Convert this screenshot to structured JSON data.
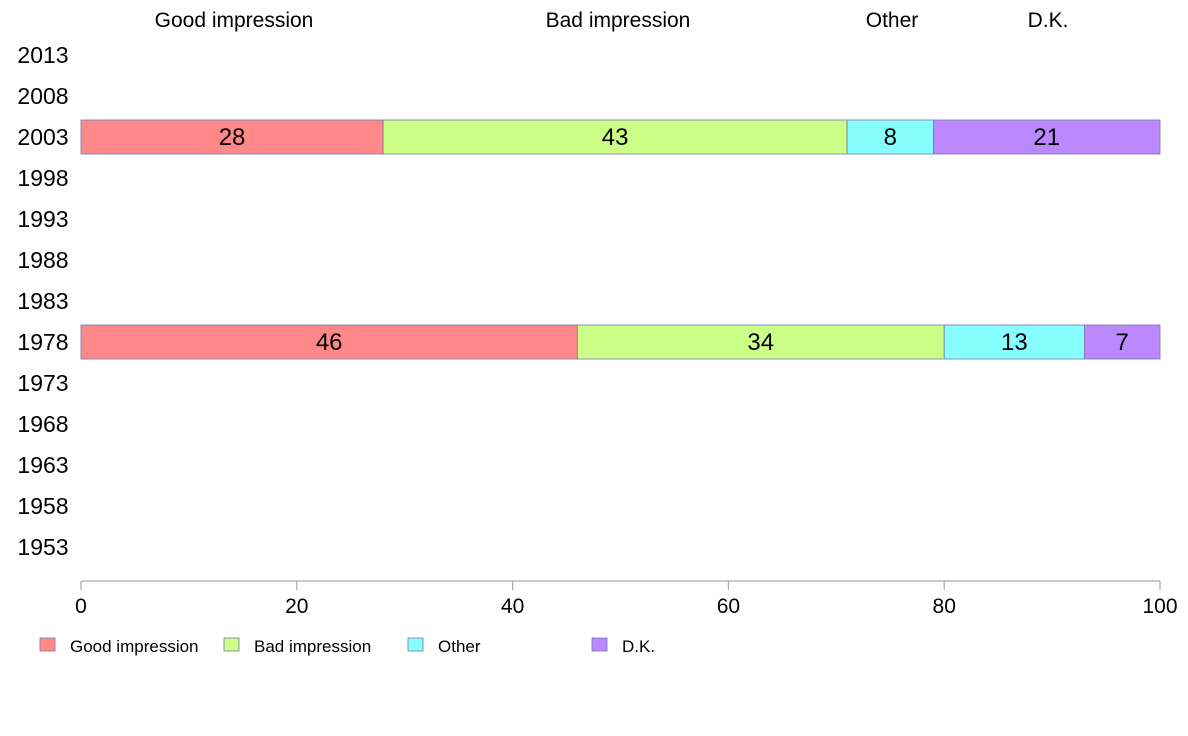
{
  "chart_data": {
    "type": "bar",
    "orientation": "horizontal",
    "stacked": true,
    "title": "",
    "xlabel": "",
    "ylabel": "",
    "xlim": [
      0,
      100
    ],
    "x_ticks": [
      "0",
      "20",
      "40",
      "60",
      "80",
      "100"
    ],
    "categories": [
      "2013",
      "2008",
      "2003",
      "1998",
      "1993",
      "1988",
      "1983",
      "1978",
      "1973",
      "1968",
      "1963",
      "1958",
      "1953"
    ],
    "series": [
      {
        "name": "Good impression",
        "color": "#ff8888",
        "values": [
          null,
          null,
          28,
          null,
          null,
          null,
          null,
          46,
          null,
          null,
          null,
          null,
          null
        ]
      },
      {
        "name": "Bad impression",
        "color": "#ccff88",
        "values": [
          null,
          null,
          43,
          null,
          null,
          null,
          null,
          34,
          null,
          null,
          null,
          null,
          null
        ]
      },
      {
        "name": "Other",
        "color": "#88ffff",
        "values": [
          null,
          null,
          8,
          null,
          null,
          null,
          null,
          13,
          null,
          null,
          null,
          null,
          null
        ]
      },
      {
        "name": "D.K.",
        "color": "#bb88ff",
        "values": [
          null,
          null,
          21,
          null,
          null,
          null,
          null,
          7,
          null,
          null,
          null,
          null,
          null
        ]
      }
    ],
    "top_labels": [
      "Good impression",
      "Bad impression",
      "Other",
      "D.K."
    ],
    "legend": {
      "position": "bottom-left",
      "items": [
        "Good impression",
        "Bad impression",
        "Other",
        "D.K."
      ]
    },
    "grid": false
  }
}
